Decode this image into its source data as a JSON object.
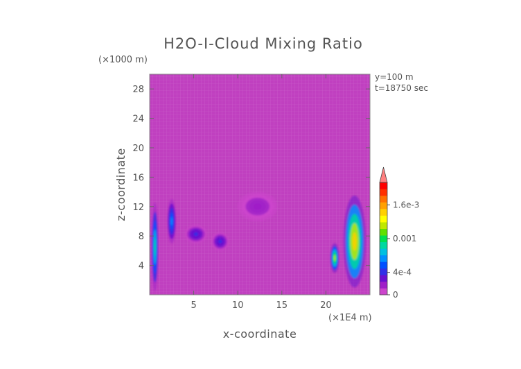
{
  "chart_data": {
    "type": "heatmap",
    "title": "H2O-I-Cloud Mixing Ratio",
    "y_unit": "(×1000 m)",
    "x_unit": "(×1E4 m)",
    "xlabel": "x-coordinate",
    "ylabel": "z-coordinate",
    "annotations": [
      "y=100 m",
      "t=18750 sec"
    ],
    "x_range": [
      0,
      25
    ],
    "y_range": [
      0,
      30
    ],
    "x_ticks": [
      5,
      10,
      15,
      20
    ],
    "y_ticks": [
      4,
      8,
      12,
      16,
      20,
      24,
      28
    ],
    "colorbar": {
      "min": 0,
      "max": 0.002,
      "tick_values": [
        0,
        0.0004,
        0.001,
        0.0016
      ],
      "tick_labels": [
        "0",
        "4e-4",
        "0.001",
        "1.6e-3"
      ],
      "colors": [
        "#cc44cc",
        "#a020c8",
        "#6a10d0",
        "#3030e8",
        "#0050ff",
        "#0090ff",
        "#00c0e0",
        "#00d8a0",
        "#00e050",
        "#60e000",
        "#c0e800",
        "#ffff00",
        "#ffd000",
        "#ffa000",
        "#ff7000",
        "#ff3000",
        "#ff0000"
      ],
      "extend_max_color": "#ff8080"
    },
    "background_color": "#c040c0",
    "features": [
      {
        "x": [
          0.2,
          1.0
        ],
        "z": [
          0.5,
          12.5
        ],
        "peak": 0.0009
      },
      {
        "x": [
          2.0,
          3.0
        ],
        "z": [
          7.0,
          13.0
        ],
        "peak": 0.0006
      },
      {
        "x": [
          4.0,
          6.5
        ],
        "z": [
          7.0,
          9.5
        ],
        "peak": 0.0004
      },
      {
        "x": [
          7.0,
          9.0
        ],
        "z": [
          6.0,
          8.5
        ],
        "peak": 0.0004
      },
      {
        "x": [
          10.0,
          14.5
        ],
        "z": [
          10.0,
          14.0
        ],
        "peak": 0.0002
      },
      {
        "x": [
          20.5,
          21.5
        ],
        "z": [
          3.0,
          7.0
        ],
        "peak": 0.0012
      },
      {
        "x": [
          22.0,
          24.5
        ],
        "z": [
          1.0,
          13.5
        ],
        "peak": 0.0015
      }
    ]
  }
}
